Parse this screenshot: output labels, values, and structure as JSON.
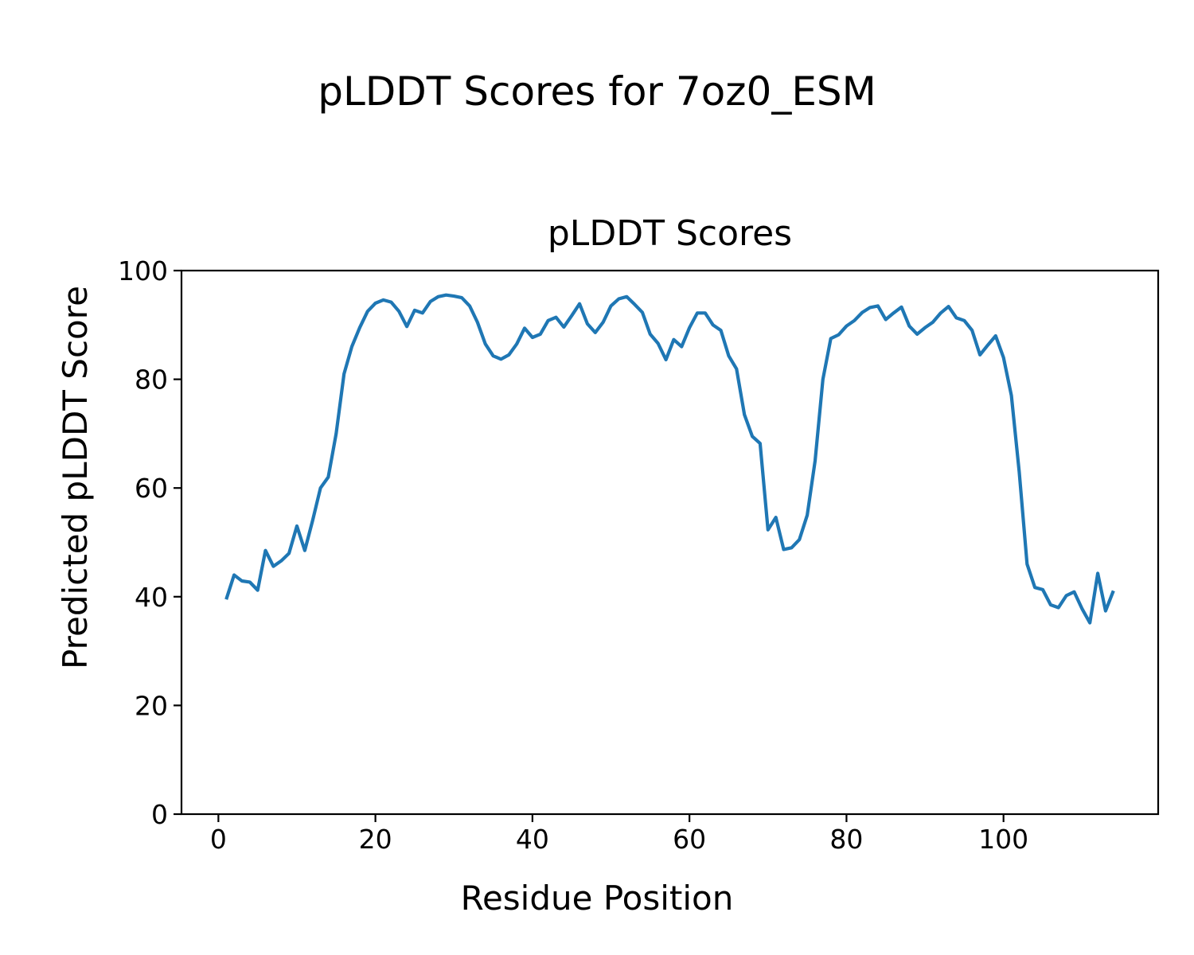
{
  "figure": {
    "suptitle": "pLDDT Scores for 7oz0_ESM",
    "background_color": "#ffffff",
    "text_color": "#000000"
  },
  "chart_data": {
    "type": "line",
    "title": "pLDDT Scores",
    "xlabel": "Residue Position",
    "ylabel": "Predicted pLDDT Score",
    "x_tick_labels": [
      0,
      20,
      40,
      60,
      80,
      100
    ],
    "y_tick_labels": [
      0,
      20,
      40,
      60,
      80,
      100
    ],
    "xlim": [
      -4.7,
      119.7
    ],
    "ylim": [
      0,
      100
    ],
    "grid": false,
    "legend": "none",
    "line_color": "#1f77b4",
    "axis_color": "#000000",
    "series": [
      {
        "name": "pLDDT",
        "x_start": 1,
        "x_step": 1,
        "n_points": 114,
        "values": [
          39.5,
          44.0,
          42.9,
          42.7,
          41.2,
          48.5,
          45.6,
          46.6,
          48.0,
          53.0,
          48.5,
          54.0,
          60.0,
          62.0,
          70.0,
          81.0,
          86.0,
          89.5,
          92.5,
          94.0,
          94.6,
          94.2,
          92.5,
          89.7,
          92.7,
          92.2,
          94.3,
          95.2,
          95.5,
          95.3,
          95.0,
          93.5,
          90.5,
          86.5,
          84.3,
          83.7,
          84.5,
          86.5,
          89.4,
          87.7,
          88.3,
          90.8,
          91.4,
          89.6,
          91.7,
          93.9,
          90.2,
          88.6,
          90.5,
          93.5,
          94.8,
          95.2,
          93.8,
          92.3,
          88.3,
          86.6,
          83.6,
          87.3,
          86.0,
          89.5,
          92.2,
          92.2,
          90.0,
          89.0,
          84.3,
          81.9,
          73.5,
          69.5,
          68.2,
          52.3,
          54.6,
          48.7,
          49.0,
          50.5,
          55.0,
          65.0,
          80.0,
          87.5,
          88.2,
          89.8,
          90.8,
          92.3,
          93.2,
          93.5,
          91.0,
          92.2,
          93.3,
          89.8,
          88.3,
          89.5,
          90.5,
          92.2,
          93.4,
          91.3,
          90.8,
          89.0,
          84.5,
          86.3,
          88.0,
          84.0,
          77.0,
          63.0,
          46.0,
          41.7,
          41.3,
          38.5,
          38.0,
          40.2,
          40.9,
          37.8,
          35.2,
          44.3,
          37.4,
          41.1
        ]
      }
    ]
  }
}
